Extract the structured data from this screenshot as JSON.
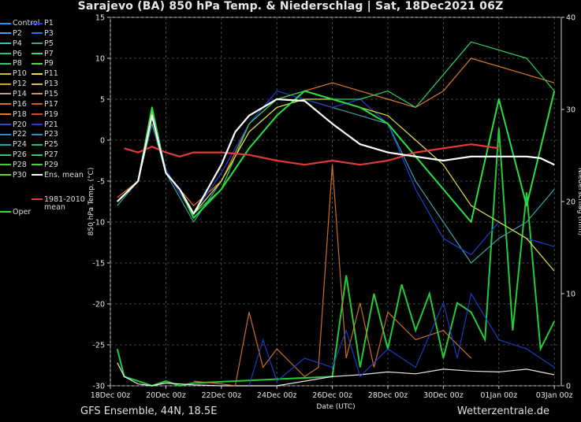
{
  "header": {
    "title": "Sarajevo  (BA)  850 hPa Temp. & Niederschlag | Sat, 18Dec2021 06Z"
  },
  "footer": {
    "left": "GFS Ensemble, 44N, 18.5E",
    "right": "Wetterzentrale.de"
  },
  "legend": {
    "items": [
      {
        "label": "Control",
        "color": "#1e90ff"
      },
      {
        "label": "P1",
        "color": "#1f3fd8"
      },
      {
        "label": "P2",
        "color": "#3aa0ff"
      },
      {
        "label": "P3",
        "color": "#2c6fd0"
      },
      {
        "label": "P4",
        "color": "#2ec4c4"
      },
      {
        "label": "P5",
        "color": "#3fa0a0"
      },
      {
        "label": "P6",
        "color": "#1ec47a"
      },
      {
        "label": "P7",
        "color": "#2ed68a"
      },
      {
        "label": "P8",
        "color": "#38c46e"
      },
      {
        "label": "P9",
        "color": "#5ad24e"
      },
      {
        "label": "P10",
        "color": "#c8c020"
      },
      {
        "label": "P11",
        "color": "#e8e040"
      },
      {
        "label": "P12",
        "color": "#d8a030"
      },
      {
        "label": "P13",
        "color": "#e8b850"
      },
      {
        "label": "P14",
        "color": "#c8a060"
      },
      {
        "label": "P15",
        "color": "#d89040"
      },
      {
        "label": "P16",
        "color": "#d07030"
      },
      {
        "label": "P17",
        "color": "#c86020"
      },
      {
        "label": "P18",
        "color": "#e07a2a"
      },
      {
        "label": "P19",
        "color": "#c85018"
      },
      {
        "label": "P20",
        "color": "#2a50c8"
      },
      {
        "label": "P21",
        "color": "#1f3fd8"
      },
      {
        "label": "P22",
        "color": "#2a8ad0"
      },
      {
        "label": "P23",
        "color": "#2090c8"
      },
      {
        "label": "P24",
        "color": "#20a8a8"
      },
      {
        "label": "P25",
        "color": "#28b890"
      },
      {
        "label": "P26",
        "color": "#2cc870"
      },
      {
        "label": "P27",
        "color": "#28d060"
      },
      {
        "label": "P28",
        "color": "#3cc840"
      },
      {
        "label": "P29",
        "color": "#50d040"
      },
      {
        "label": "P30",
        "color": "#70d030"
      },
      {
        "label": "Ens. mean",
        "color": "#ffffff"
      },
      {
        "label": "1981-2010",
        "color": "#e03a3a"
      },
      {
        "label": "mean",
        "color": ""
      },
      {
        "label": "Oper",
        "color": "#28e040"
      }
    ]
  },
  "chart_data": {
    "type": "line",
    "ylabel": "850 hPa Temp. (°C)",
    "y2label": "Niederschlag (mm)",
    "xlabel": "Date (UTC)",
    "ylim": [
      -30,
      15
    ],
    "y2lim": [
      0,
      40
    ],
    "yticks": [
      "15",
      "10",
      "5",
      "0",
      "-5",
      "-10",
      "-15",
      "-20",
      "-25",
      "-30"
    ],
    "y2ticks": [
      "40",
      "30",
      "20",
      "10",
      "0"
    ],
    "xticks": [
      "18Dec 00z",
      "20Dec 00z",
      "22Dec 00z",
      "24Dec 00z",
      "26Dec 00z",
      "28Dec 00z",
      "30Dec 00z",
      "01Jan 00z",
      "03Jan 00z"
    ],
    "grid": "dashed",
    "series": [
      {
        "name": "Ens. mean",
        "color": "#ffffff",
        "x": [
          0.25,
          1,
          1.5,
          2,
          2.5,
          3,
          3.5,
          4,
          4.5,
          5,
          6,
          7,
          8,
          9,
          10,
          11,
          12,
          13,
          14,
          15,
          15.5,
          16
        ],
        "y": [
          -7.5,
          -5,
          3,
          -4,
          -6,
          -9,
          -6,
          -3,
          1,
          3,
          5,
          4.8,
          2,
          -0.5,
          -1.5,
          -2,
          -2.5,
          -2,
          -2,
          -2,
          -2.2,
          -3
        ]
      },
      {
        "name": "1981-2010 mean",
        "color": "#e03a3a",
        "x": [
          0.5,
          1,
          1.5,
          2,
          2.5,
          3,
          4,
          5,
          6,
          7,
          8,
          9,
          10,
          11,
          12,
          13,
          14
        ],
        "y": [
          -1,
          -1.5,
          -0.8,
          -1.5,
          -2,
          -1.5,
          -1.5,
          -1.8,
          -2.5,
          -3,
          -2.5,
          -3,
          -2.5,
          -1.5,
          -1,
          -0.5,
          -1
        ]
      },
      {
        "name": "Oper",
        "color": "#28e040",
        "x": [
          0.25,
          1,
          1.5,
          2,
          2.5,
          3,
          4,
          5,
          6,
          7,
          8,
          9,
          10,
          11,
          12,
          13,
          14,
          15,
          16
        ],
        "y": [
          -7.5,
          -5,
          4,
          -4,
          -6,
          -9.5,
          -6,
          -1,
          3,
          6,
          5,
          4,
          2,
          -2,
          -6,
          -10,
          5,
          -8,
          6
        ]
      },
      {
        "name": "P5",
        "color": "#3fa0a0",
        "x": [
          0.25,
          1,
          1.5,
          2,
          2.5,
          3,
          4,
          5,
          6,
          7,
          8,
          9,
          10,
          11,
          12,
          13,
          14,
          15,
          16
        ],
        "y": [
          -8,
          -5,
          2,
          -4,
          -7,
          -10,
          -5,
          1,
          4,
          5,
          4,
          3,
          2,
          -5,
          -10,
          -15,
          -12,
          -10,
          -6
        ]
      },
      {
        "name": "P18",
        "color": "#e07a2a",
        "x": [
          0.25,
          1,
          1.5,
          2,
          2.5,
          3,
          4,
          5,
          6,
          7,
          8,
          9,
          10,
          11,
          12,
          13,
          14,
          15,
          16
        ],
        "y": [
          -7,
          -5,
          3,
          -4,
          -6,
          -8,
          -5,
          2,
          5,
          6,
          7,
          6,
          5,
          4,
          6,
          10,
          9,
          8,
          7
        ]
      },
      {
        "name": "P21",
        "color": "#1f3fd8",
        "x": [
          0.25,
          1,
          1.5,
          2,
          2.5,
          3,
          4,
          5,
          6,
          7,
          8,
          9,
          10,
          11,
          12,
          13,
          14,
          15,
          16
        ],
        "y": [
          -7.5,
          -5,
          3,
          -3.5,
          -6.5,
          -9,
          -4,
          2,
          6,
          5,
          4,
          5,
          2,
          -6,
          -12,
          -14,
          -10,
          -12,
          -13
        ]
      },
      {
        "name": "P27",
        "color": "#28d060",
        "x": [
          0.25,
          1,
          1.5,
          2,
          2.5,
          3,
          4,
          5,
          6,
          7,
          8,
          9,
          10,
          11,
          12,
          13,
          14,
          15,
          16
        ],
        "y": [
          -7.5,
          -5,
          3,
          -4,
          -6,
          -9,
          -6,
          2,
          5,
          6,
          5,
          5,
          6,
          4,
          8,
          12,
          11,
          10,
          6
        ]
      },
      {
        "name": "P11",
        "color": "#e8e040",
        "x": [
          0.25,
          1,
          1.5,
          2,
          2.5,
          3,
          4,
          5,
          6,
          7,
          8,
          9,
          10,
          11,
          12,
          13,
          14,
          15,
          16
        ],
        "y": [
          -7.5,
          -5,
          3.5,
          -4,
          -6,
          -9,
          -5,
          1,
          4,
          5,
          5,
          4,
          3,
          0,
          -3,
          -8,
          -10,
          -12,
          -16
        ]
      }
    ],
    "precip_series": [
      {
        "name": "Oper",
        "color": "#28e040",
        "x": [
          0.25,
          0.5,
          1,
          1.5,
          2,
          2.5,
          3,
          8,
          8.5,
          9,
          9.5,
          10,
          10.5,
          11,
          11.5,
          12,
          12.5,
          13,
          13.5,
          14,
          14.5,
          15,
          15.5,
          16
        ],
        "y": [
          4,
          1,
          0.5,
          0,
          0.5,
          0,
          0.3,
          1,
          12,
          2,
          10,
          4,
          11,
          6,
          10,
          3,
          9,
          8,
          5,
          28,
          6,
          21,
          4,
          7
        ]
      },
      {
        "name": "Ens. mean",
        "color": "#ffffff",
        "x": [
          0.25,
          0.5,
          1,
          1.5,
          2,
          3,
          4,
          5,
          6,
          7,
          8,
          9,
          10,
          11,
          12,
          13,
          14,
          15,
          16
        ],
        "y": [
          2.5,
          1,
          0.2,
          0,
          0.3,
          0.1,
          0,
          0,
          0,
          0.5,
          1,
          1.2,
          1.5,
          1.3,
          1.8,
          1.6,
          1.5,
          1.8,
          1.2
        ]
      },
      {
        "name": "P18",
        "color": "#e07a2a",
        "x": [
          3,
          4,
          4.5,
          5,
          5.5,
          6,
          7,
          7.5,
          8,
          8.5,
          9,
          9.5,
          10,
          11,
          12,
          13
        ],
        "y": [
          0.5,
          0.2,
          0,
          8,
          2,
          4,
          1,
          2,
          24,
          3,
          9,
          2,
          8,
          5,
          6,
          3
        ]
      },
      {
        "name": "P21",
        "color": "#1f3fd8",
        "x": [
          5,
          5.5,
          6,
          7,
          8,
          8.5,
          9,
          10,
          11,
          12,
          12.5,
          13,
          14,
          15,
          16
        ],
        "y": [
          0,
          5,
          0.5,
          3,
          2,
          6,
          1,
          4,
          2,
          9,
          3,
          10,
          5,
          4,
          2
        ]
      }
    ]
  }
}
